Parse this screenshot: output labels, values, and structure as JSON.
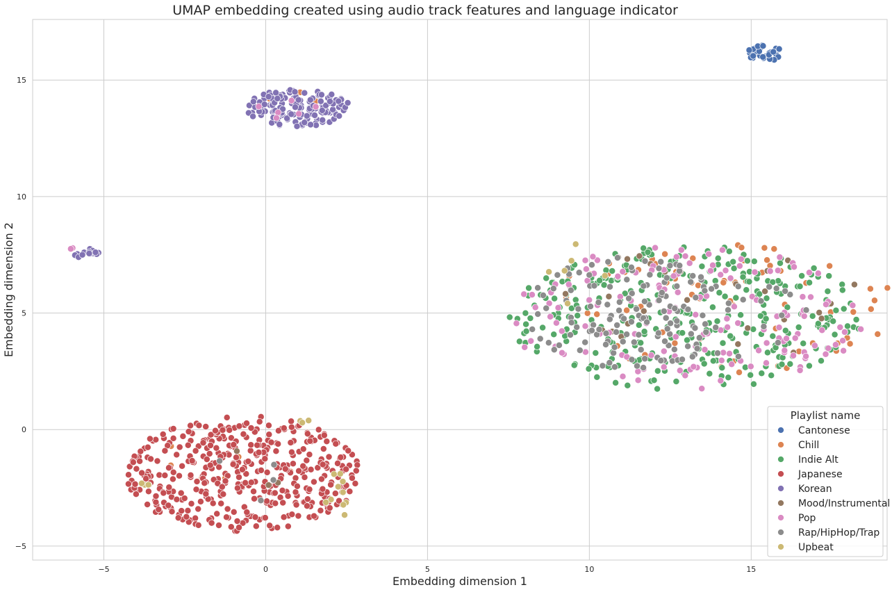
{
  "chart_data": {
    "type": "scatter",
    "title": "UMAP embedding created using audio track features and language indicator",
    "xlabel": "Embedding dimension 1",
    "ylabel": "Embedding dimension 2",
    "xlim": [
      -7.2,
      19.2
    ],
    "ylim": [
      -5.6,
      17.6
    ],
    "xticks": [
      -5,
      0,
      5,
      10,
      15
    ],
    "yticks": [
      -5,
      0,
      5,
      10,
      15
    ],
    "xtick_labels": [
      "−5",
      "0",
      "5",
      "10",
      "15"
    ],
    "ytick_labels": [
      "−5",
      "0",
      "5",
      "10",
      "15"
    ],
    "grid": true,
    "legend": {
      "title": "Playlist name",
      "placement": "bottom-right"
    },
    "series": [
      {
        "name": "Cantonese",
        "color": "#4c72b0",
        "clusters": [
          {
            "cx": 15.4,
            "cy": 16.15,
            "rx": 0.55,
            "ry": 0.35,
            "n": 40
          }
        ]
      },
      {
        "name": "Chill",
        "color": "#dd8452",
        "clusters": [
          {
            "cx": 14.2,
            "cy": 5.2,
            "rx": 5.6,
            "ry": 2.8,
            "n": 70
          },
          {
            "cx": 0.6,
            "cy": 14.0,
            "rx": 1.2,
            "ry": 0.6,
            "n": 6
          },
          {
            "cx": -1.0,
            "cy": -1.5,
            "rx": 2.5,
            "ry": 1.5,
            "n": 6
          }
        ]
      },
      {
        "name": "Indie Alt",
        "color": "#55a868",
        "clusters": [
          {
            "cx": 13.0,
            "cy": 4.8,
            "rx": 5.5,
            "ry": 3.1,
            "n": 310
          }
        ]
      },
      {
        "name": "Japanese",
        "color": "#c44e52",
        "clusters": [
          {
            "cx": -0.7,
            "cy": -1.9,
            "rx": 3.6,
            "ry": 2.5,
            "n": 430
          }
        ]
      },
      {
        "name": "Korean",
        "color": "#8172b3",
        "clusters": [
          {
            "cx": 1.0,
            "cy": 13.8,
            "rx": 1.6,
            "ry": 0.8,
            "n": 150
          },
          {
            "cx": -5.6,
            "cy": 7.55,
            "rx": 0.45,
            "ry": 0.25,
            "n": 15
          }
        ]
      },
      {
        "name": "Mood/Instrumental",
        "color": "#937860",
        "clusters": [
          {
            "cx": 14.0,
            "cy": 5.5,
            "rx": 5.0,
            "ry": 2.5,
            "n": 28
          },
          {
            "cx": -0.5,
            "cy": -2.0,
            "rx": 1.5,
            "ry": 1.5,
            "n": 3
          }
        ]
      },
      {
        "name": "Pop",
        "color": "#da8bc3",
        "clusters": [
          {
            "cx": 13.0,
            "cy": 4.8,
            "rx": 5.5,
            "ry": 3.1,
            "n": 150
          },
          {
            "cx": 1.0,
            "cy": 13.8,
            "rx": 1.3,
            "ry": 0.7,
            "n": 6
          },
          {
            "cx": -5.9,
            "cy": 7.7,
            "rx": 0.2,
            "ry": 0.1,
            "n": 2
          }
        ]
      },
      {
        "name": "Rap/HipHop/Trap",
        "color": "#8c8c8c",
        "clusters": [
          {
            "cx": 11.2,
            "cy": 5.0,
            "rx": 3.2,
            "ry": 2.4,
            "n": 130
          },
          {
            "cx": 14.0,
            "cy": 4.5,
            "rx": 3.0,
            "ry": 2.0,
            "n": 25
          },
          {
            "cx": -0.3,
            "cy": -2.5,
            "rx": 1.8,
            "ry": 1.5,
            "n": 4
          }
        ]
      },
      {
        "name": "Upbeat",
        "color": "#ccb974",
        "clusters": [
          {
            "cx": 2.3,
            "cy": -3.0,
            "rx": 0.5,
            "ry": 1.3,
            "n": 10
          },
          {
            "cx": 1.2,
            "cy": 0.35,
            "rx": 0.3,
            "ry": 0.1,
            "n": 3
          },
          {
            "cx": -3.8,
            "cy": -2.3,
            "rx": 0.4,
            "ry": 0.2,
            "n": 3
          },
          {
            "cx": 9.5,
            "cy": 6.5,
            "rx": 1.3,
            "ry": 1.5,
            "n": 6
          }
        ]
      }
    ]
  }
}
